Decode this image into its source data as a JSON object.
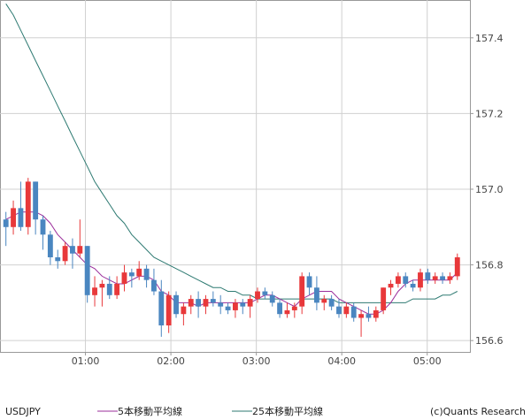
{
  "chart_data": {
    "type": "candlestick",
    "symbol": "USDJPY",
    "x_tick_labels": [
      "01:00",
      "02:00",
      "03:00",
      "04:00",
      "05:00"
    ],
    "x_tick_minutes": [
      60,
      120,
      180,
      240,
      300
    ],
    "x_range_minutes": [
      0,
      330
    ],
    "y_ticks": [
      156.6,
      156.8,
      157.0,
      157.2,
      157.4
    ],
    "y_tick_labels": [
      "156.6",
      "156.8",
      "157.0",
      "157.2",
      "157.4"
    ],
    "ylim": [
      156.57,
      157.5
    ],
    "grid": true,
    "legend": [
      {
        "name": "5本移動平均線",
        "color": "#9b2e9b"
      },
      {
        "name": "25本移動平均線",
        "color": "#2e7a72"
      }
    ],
    "copyright": "(c)Quants Research",
    "colors": {
      "up": "#e8383a",
      "down": "#4a86c0",
      "grid": "#d0d0d0",
      "axis": "#999999"
    },
    "candles": [
      [
        156.92,
        156.94,
        156.85,
        156.9
      ],
      [
        156.9,
        156.97,
        156.88,
        156.95
      ],
      [
        156.95,
        157.02,
        156.89,
        156.9
      ],
      [
        156.9,
        157.03,
        156.88,
        157.02
      ],
      [
        157.02,
        157.02,
        156.88,
        156.92
      ],
      [
        156.92,
        156.93,
        156.84,
        156.88
      ],
      [
        156.88,
        156.89,
        156.8,
        156.82
      ],
      [
        156.82,
        156.84,
        156.79,
        156.81
      ],
      [
        156.81,
        156.86,
        156.8,
        156.85
      ],
      [
        156.85,
        156.87,
        156.79,
        156.83
      ],
      [
        156.83,
        156.92,
        156.82,
        156.85
      ],
      [
        156.85,
        156.85,
        156.7,
        156.72
      ],
      [
        156.72,
        156.77,
        156.69,
        156.74
      ],
      [
        156.74,
        156.76,
        156.69,
        156.75
      ],
      [
        156.75,
        156.77,
        156.71,
        156.72
      ],
      [
        156.72,
        156.77,
        156.71,
        156.75
      ],
      [
        156.75,
        156.8,
        156.73,
        156.78
      ],
      [
        156.78,
        156.79,
        156.74,
        156.77
      ],
      [
        156.77,
        156.81,
        156.76,
        156.79
      ],
      [
        156.79,
        156.8,
        156.74,
        156.76
      ],
      [
        156.76,
        156.79,
        156.72,
        156.73
      ],
      [
        156.73,
        156.76,
        156.61,
        156.64
      ],
      [
        156.64,
        156.73,
        156.62,
        156.72
      ],
      [
        156.72,
        156.73,
        156.66,
        156.67
      ],
      [
        156.67,
        156.7,
        156.64,
        156.69
      ],
      [
        156.69,
        156.72,
        156.67,
        156.71
      ],
      [
        156.71,
        156.73,
        156.66,
        156.69
      ],
      [
        156.69,
        156.72,
        156.67,
        156.71
      ],
      [
        156.71,
        156.73,
        156.69,
        156.7
      ],
      [
        156.7,
        156.72,
        156.67,
        156.69
      ],
      [
        156.69,
        156.7,
        156.67,
        156.68
      ],
      [
        156.68,
        156.71,
        156.66,
        156.7
      ],
      [
        156.7,
        156.71,
        156.67,
        156.69
      ],
      [
        156.69,
        156.72,
        156.66,
        156.71
      ],
      [
        156.71,
        156.74,
        156.7,
        156.73
      ],
      [
        156.73,
        156.74,
        156.71,
        156.72
      ],
      [
        156.72,
        156.73,
        156.69,
        156.7
      ],
      [
        156.7,
        156.71,
        156.66,
        156.67
      ],
      [
        156.67,
        156.7,
        156.66,
        156.68
      ],
      [
        156.68,
        156.7,
        156.66,
        156.69
      ],
      [
        156.69,
        156.78,
        156.67,
        156.77
      ],
      [
        156.77,
        156.78,
        156.72,
        156.74
      ],
      [
        156.74,
        156.77,
        156.68,
        156.7
      ],
      [
        156.7,
        156.72,
        156.68,
        156.71
      ],
      [
        156.71,
        156.72,
        156.68,
        156.69
      ],
      [
        156.69,
        156.71,
        156.66,
        156.67
      ],
      [
        156.67,
        156.7,
        156.66,
        156.69
      ],
      [
        156.69,
        156.7,
        156.65,
        156.66
      ],
      [
        156.66,
        156.68,
        156.61,
        156.67
      ],
      [
        156.67,
        156.69,
        156.65,
        156.66
      ],
      [
        156.66,
        156.69,
        156.65,
        156.68
      ],
      [
        156.68,
        156.74,
        156.67,
        156.74
      ],
      [
        156.74,
        156.76,
        156.72,
        156.75
      ],
      [
        156.75,
        156.78,
        156.74,
        156.77
      ],
      [
        156.77,
        156.78,
        156.74,
        156.75
      ],
      [
        156.75,
        156.76,
        156.73,
        156.74
      ],
      [
        156.74,
        156.79,
        156.73,
        156.78
      ],
      [
        156.78,
        156.79,
        156.75,
        156.76
      ],
      [
        156.76,
        156.78,
        156.75,
        156.77
      ],
      [
        156.77,
        156.78,
        156.75,
        156.76
      ],
      [
        156.76,
        156.78,
        156.75,
        156.77
      ],
      [
        156.77,
        156.83,
        156.76,
        156.82
      ]
    ],
    "ma5": [
      156.92,
      156.93,
      156.94,
      156.94,
      156.94,
      156.93,
      156.91,
      156.88,
      156.86,
      156.84,
      156.82,
      156.8,
      156.79,
      156.77,
      156.76,
      156.75,
      156.75,
      156.76,
      156.77,
      156.77,
      156.76,
      156.73,
      156.72,
      156.7,
      156.7,
      156.7,
      156.69,
      156.7,
      156.7,
      156.7,
      156.7,
      156.7,
      156.7,
      156.7,
      156.71,
      156.72,
      156.72,
      156.71,
      156.7,
      156.69,
      156.71,
      156.72,
      156.73,
      156.73,
      156.73,
      156.71,
      156.7,
      156.69,
      156.68,
      156.67,
      156.67,
      156.68,
      156.7,
      156.73,
      156.75,
      156.76,
      156.76,
      156.76,
      156.76,
      156.76,
      156.76,
      156.78
    ],
    "ma25": [
      157.49,
      157.46,
      157.42,
      157.38,
      157.34,
      157.3,
      157.26,
      157.22,
      157.18,
      157.14,
      157.1,
      157.06,
      157.02,
      156.99,
      156.96,
      156.93,
      156.91,
      156.88,
      156.86,
      156.84,
      156.82,
      156.81,
      156.8,
      156.79,
      156.78,
      156.77,
      156.76,
      156.75,
      156.74,
      156.74,
      156.73,
      156.73,
      156.72,
      156.72,
      156.71,
      156.71,
      156.71,
      156.71,
      156.71,
      156.71,
      156.71,
      156.71,
      156.71,
      156.71,
      156.71,
      156.7,
      156.7,
      156.7,
      156.7,
      156.7,
      156.7,
      156.7,
      156.7,
      156.7,
      156.7,
      156.71,
      156.71,
      156.71,
      156.71,
      156.72,
      156.72,
      156.73
    ]
  }
}
